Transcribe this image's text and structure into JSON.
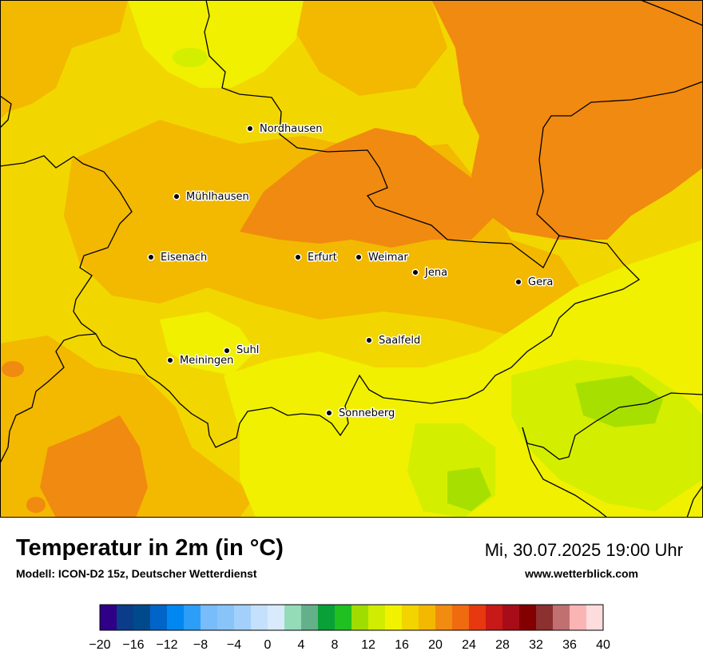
{
  "map": {
    "cities": [
      {
        "name": "Nordhausen",
        "key": "nordhausen"
      },
      {
        "name": "Mühlhausen",
        "key": "muehlhausen"
      },
      {
        "name": "Eisenach",
        "key": "eisenach"
      },
      {
        "name": "Erfurt",
        "key": "erfurt"
      },
      {
        "name": "Weimar",
        "key": "weimar"
      },
      {
        "name": "Jena",
        "key": "jena"
      },
      {
        "name": "Gera",
        "key": "gera"
      },
      {
        "name": "Suhl",
        "key": "suhl"
      },
      {
        "name": "Meiningen",
        "key": "meiningen"
      },
      {
        "name": "Saalfeld",
        "key": "saalfeld"
      },
      {
        "name": "Sonneberg",
        "key": "sonneberg"
      }
    ],
    "colors": {
      "c16": "#f0f000",
      "c18": "#f2d600",
      "c20": "#f3b800",
      "c22": "#f18a10",
      "c14": "#d4ee00",
      "c12": "#a7e000",
      "border": "#000000"
    }
  },
  "title": "Temperatur in 2m (in °C)",
  "model": "Modell: ICON-D2 15z, Deutscher Wetterdienst",
  "datetime": "Mi, 30.07.2025 19:00 Uhr",
  "site": "www.wetterblick.com",
  "legend": {
    "min": -20,
    "max": 40,
    "step": 2,
    "tick_labels": [
      "−20",
      "−16",
      "−12",
      "−8",
      "−4",
      "0",
      "4",
      "8",
      "12",
      "16",
      "20",
      "24",
      "28",
      "32",
      "36",
      "40"
    ],
    "colors": [
      "#2f0086",
      "#0a3c8a",
      "#004a8c",
      "#0064c8",
      "#0088f0",
      "#2c9ef8",
      "#78bcfc",
      "#88c4f8",
      "#a2d0fa",
      "#c4e0fc",
      "#d8eafc",
      "#94dcb8",
      "#64b08a",
      "#0aa038",
      "#20c020",
      "#a0dc00",
      "#d0ec00",
      "#f2f200",
      "#f2d400",
      "#f3b800",
      "#f28c10",
      "#f06a10",
      "#e83810",
      "#c81818",
      "#a80c18",
      "#840000",
      "#8c3030",
      "#c07070",
      "#fab4b4",
      "#fcdcdc"
    ]
  }
}
